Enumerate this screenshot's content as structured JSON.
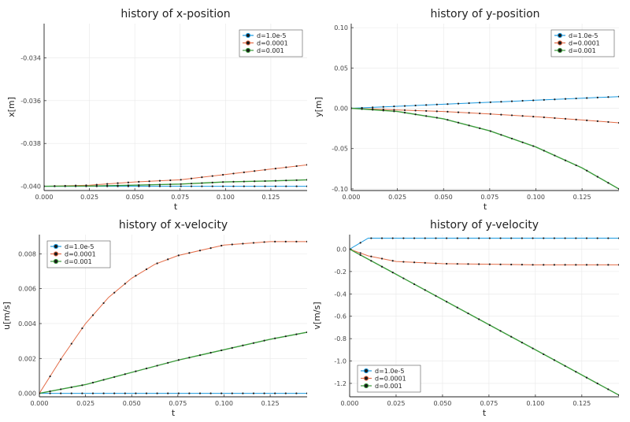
{
  "colors": {
    "series": [
      "#1a9ae0",
      "#e36c47",
      "#3b9a3b"
    ],
    "marker": "#1a1a1a",
    "grid": "#e8e8e8",
    "axis": "#222222",
    "legend_border": "#555555"
  },
  "chart_data": [
    {
      "type": "line",
      "title": "history of x-position",
      "xlabel": "t",
      "ylabel": "x[m]",
      "xlim": [
        0.0,
        0.145
      ],
      "ylim": [
        -0.0402,
        -0.0324
      ],
      "xticks": [
        0.0,
        0.025,
        0.05,
        0.075,
        0.1,
        0.125
      ],
      "xtick_labels": [
        "0.000",
        "0.025",
        "0.050",
        "0.075",
        "0.100",
        "0.125"
      ],
      "yticks": [
        -0.04,
        -0.038,
        -0.036,
        -0.034
      ],
      "ytick_labels": [
        "-0.040",
        "-0.038",
        "-0.036",
        "-0.034"
      ],
      "legend_position": "top-right",
      "series": [
        {
          "name": "d=1.0e-5",
          "x": [
            0.0,
            0.025,
            0.05,
            0.075,
            0.1,
            0.125,
            0.145
          ],
          "values": [
            -0.04,
            -0.04,
            -0.04,
            -0.04,
            -0.04,
            -0.04,
            -0.04
          ]
        },
        {
          "name": "d=0.0001",
          "x": [
            0.0,
            0.025,
            0.05,
            0.075,
            0.1,
            0.125,
            0.145
          ],
          "values": [
            -0.04,
            -0.03995,
            -0.0398,
            -0.0397,
            -0.03945,
            -0.0392,
            -0.039
          ]
        },
        {
          "name": "d=0.001",
          "x": [
            0.0,
            0.025,
            0.05,
            0.075,
            0.1,
            0.125,
            0.145
          ],
          "values": [
            -0.04,
            -0.03999,
            -0.03995,
            -0.0399,
            -0.0398,
            -0.03975,
            -0.0397
          ]
        }
      ]
    },
    {
      "type": "line",
      "title": "history of y-position",
      "xlabel": "t",
      "ylabel": "y[m]",
      "xlim": [
        0.0,
        0.145
      ],
      "ylim": [
        -0.102,
        0.105
      ],
      "xticks": [
        0.0,
        0.025,
        0.05,
        0.075,
        0.1,
        0.125
      ],
      "xtick_labels": [
        "0.000",
        "0.025",
        "0.050",
        "0.075",
        "0.100",
        "0.125"
      ],
      "yticks": [
        -0.1,
        -0.05,
        0.0,
        0.05,
        0.1
      ],
      "ytick_labels": [
        "-0.10",
        "-0.05",
        "0.00",
        "0.05",
        "0.10"
      ],
      "legend_position": "top-right",
      "series": [
        {
          "name": "d=1.0e-5",
          "x": [
            0.0,
            0.025,
            0.05,
            0.075,
            0.1,
            0.125,
            0.145
          ],
          "values": [
            0.0,
            0.0025,
            0.005,
            0.0075,
            0.01,
            0.0125,
            0.0145
          ]
        },
        {
          "name": "d=0.0001",
          "x": [
            0.0,
            0.025,
            0.05,
            0.075,
            0.1,
            0.125,
            0.145
          ],
          "values": [
            0.0,
            -0.002,
            -0.004,
            -0.007,
            -0.0105,
            -0.0145,
            -0.018
          ]
        },
        {
          "name": "d=0.001",
          "x": [
            0.0,
            0.025,
            0.05,
            0.075,
            0.1,
            0.125,
            0.145
          ],
          "values": [
            0.0,
            -0.004,
            -0.013,
            -0.028,
            -0.048,
            -0.074,
            -0.1
          ]
        }
      ]
    },
    {
      "type": "line",
      "title": "history of x-velocity",
      "xlabel": "t",
      "ylabel": "u[m/s]",
      "xlim": [
        0.0,
        0.145
      ],
      "ylim": [
        -0.0002,
        0.0091
      ],
      "xticks": [
        0.0,
        0.025,
        0.05,
        0.075,
        0.1,
        0.125
      ],
      "xtick_labels": [
        "0.000",
        "0.025",
        "0.050",
        "0.075",
        "0.100",
        "0.125"
      ],
      "yticks": [
        0.0,
        0.002,
        0.004,
        0.006,
        0.008
      ],
      "ytick_labels": [
        "0.000",
        "0.002",
        "0.004",
        "0.006",
        "0.008"
      ],
      "legend_position": "top-left",
      "series": [
        {
          "name": "d=1.0e-5",
          "x": [
            0.0,
            0.025,
            0.05,
            0.075,
            0.1,
            0.125,
            0.145
          ],
          "values": [
            0.0,
            0.0,
            0.0,
            0.0,
            0.0,
            0.0,
            0.0
          ]
        },
        {
          "name": "d=0.0001",
          "x": [
            0.0,
            0.0125,
            0.025,
            0.0375,
            0.05,
            0.0625,
            0.075,
            0.0875,
            0.1,
            0.1125,
            0.125,
            0.135,
            0.145
          ],
          "values": [
            0.0,
            0.0021,
            0.004,
            0.0055,
            0.0066,
            0.0074,
            0.0079,
            0.0082,
            0.0085,
            0.0086,
            0.0087,
            0.0087,
            0.0087
          ]
        },
        {
          "name": "d=0.001",
          "x": [
            0.0,
            0.025,
            0.05,
            0.075,
            0.1,
            0.125,
            0.145
          ],
          "values": [
            0.0,
            0.0005,
            0.0012,
            0.0019,
            0.0025,
            0.0031,
            0.0035
          ]
        }
      ]
    },
    {
      "type": "line",
      "title": "history of y-velocity",
      "xlabel": "t",
      "ylabel": "v[m/s]",
      "xlim": [
        0.0,
        0.145
      ],
      "ylim": [
        -1.32,
        0.13
      ],
      "xticks": [
        0.0,
        0.025,
        0.05,
        0.075,
        0.1,
        0.125
      ],
      "xtick_labels": [
        "0.000",
        "0.025",
        "0.050",
        "0.075",
        "0.100",
        "0.125"
      ],
      "yticks": [
        -1.2,
        -1.0,
        -0.8,
        -0.6,
        -0.4,
        -0.2,
        0.0
      ],
      "ytick_labels": [
        "-1.2",
        "-1.0",
        "-0.8",
        "-0.6",
        "-0.4",
        "-0.2",
        "0.0"
      ],
      "legend_position": "bottom-left",
      "series": [
        {
          "name": "d=1.0e-5",
          "x": [
            0.0,
            0.01,
            0.025,
            0.05,
            0.075,
            0.1,
            0.125,
            0.145
          ],
          "values": [
            0.0,
            0.098,
            0.098,
            0.098,
            0.098,
            0.098,
            0.098,
            0.098
          ]
        },
        {
          "name": "d=0.0001",
          "x": [
            0.0,
            0.01,
            0.025,
            0.05,
            0.075,
            0.1,
            0.125,
            0.145
          ],
          "values": [
            0.0,
            -0.06,
            -0.11,
            -0.13,
            -0.135,
            -0.14,
            -0.14,
            -0.14
          ]
        },
        {
          "name": "d=0.001",
          "x": [
            0.0,
            0.025,
            0.05,
            0.075,
            0.1,
            0.125,
            0.145
          ],
          "values": [
            0.0,
            -0.225,
            -0.45,
            -0.675,
            -0.9,
            -1.125,
            -1.305
          ]
        }
      ]
    }
  ]
}
